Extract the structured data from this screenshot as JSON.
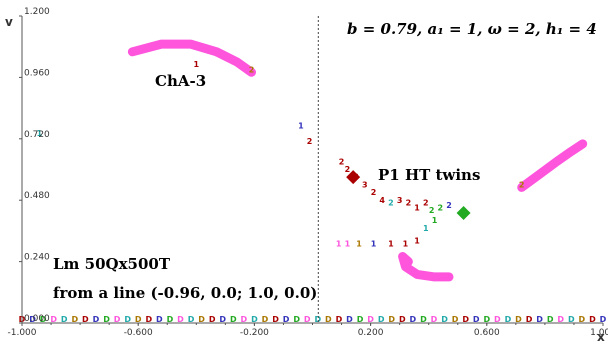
{
  "chart_data": {
    "type": "scatter",
    "xlabel": "x",
    "ylabel": "v",
    "xlim": [
      -1.0,
      1.0
    ],
    "ylim": [
      0.0,
      1.2
    ],
    "x_ticks": [
      "-1.000",
      "-0.600",
      "-0.200",
      "0.200",
      "0.600",
      "1.000"
    ],
    "y_ticks": [
      "0.000",
      "0.240",
      "0.480",
      "0.720",
      "0.960",
      "1.200"
    ],
    "annotations": {
      "params": "b = 0.79, a₁ = 1, ω = 2, h₁ = 4",
      "cha_label": "ChA-3",
      "p1_label": "P1 HT twins",
      "lm_label": "Lm 50Qx500T",
      "line_label": "from a line (-0.96, 0.0; 1.0, 0.0)"
    },
    "dashed_vline_x": 0.02,
    "colors": {
      "axis": "#555555",
      "tick": "#333333",
      "magenta": "#ff55dd",
      "dark_red": "#aa0000",
      "green": "#22aa22",
      "dotted_line": "#444444"
    },
    "curves": [
      {
        "name": "",
        "color": "#ff55dd",
        "points": [
          [
            -0.62,
            1.06
          ],
          [
            -0.52,
            1.09
          ],
          [
            -0.42,
            1.09
          ],
          [
            -0.33,
            1.06
          ],
          [
            -0.26,
            1.02
          ],
          [
            -0.21,
            0.98
          ]
        ]
      },
      {
        "name": "",
        "color": "#ff55dd",
        "points": [
          [
            0.72,
            0.53
          ],
          [
            0.78,
            0.58
          ],
          [
            0.84,
            0.63
          ],
          [
            0.89,
            0.67
          ],
          [
            0.93,
            0.7
          ]
        ]
      },
      {
        "name": "",
        "color": "#ff55dd",
        "points": [
          [
            0.33,
            0.24
          ],
          [
            0.31,
            0.26
          ],
          [
            0.32,
            0.22
          ],
          [
            0.36,
            0.19
          ],
          [
            0.42,
            0.18
          ],
          [
            0.47,
            0.18
          ]
        ]
      }
    ],
    "marks": [
      {
        "x": -0.94,
        "y": 0.73,
        "t": "1",
        "color": "#22aaaa"
      },
      {
        "x": -0.4,
        "y": 1.0,
        "t": "1",
        "color": "#aa0000"
      },
      {
        "x": -0.21,
        "y": 0.98,
        "t": "2",
        "color": "#aa7700"
      },
      {
        "x": -0.04,
        "y": 0.76,
        "t": "1",
        "color": "#3333bb"
      },
      {
        "x": -0.01,
        "y": 0.7,
        "t": "2",
        "color": "#aa0000"
      },
      {
        "x": 0.1,
        "y": 0.62,
        "t": "2",
        "color": "#aa0000"
      },
      {
        "x": 0.12,
        "y": 0.59,
        "t": "2",
        "color": "#aa0000"
      },
      {
        "x": 0.15,
        "y": 0.56,
        "t": "3",
        "color": "#aa0000"
      },
      {
        "x": 0.18,
        "y": 0.53,
        "t": "3",
        "color": "#aa0000"
      },
      {
        "x": 0.21,
        "y": 0.5,
        "t": "2",
        "color": "#aa0000"
      },
      {
        "x": 0.24,
        "y": 0.47,
        "t": "4",
        "color": "#aa0000"
      },
      {
        "x": 0.27,
        "y": 0.46,
        "t": "2",
        "color": "#22aaaa"
      },
      {
        "x": 0.3,
        "y": 0.47,
        "t": "3",
        "color": "#aa0000"
      },
      {
        "x": 0.33,
        "y": 0.46,
        "t": "2",
        "color": "#aa0000"
      },
      {
        "x": 0.36,
        "y": 0.44,
        "t": "1",
        "color": "#aa0000"
      },
      {
        "x": 0.39,
        "y": 0.46,
        "t": "2",
        "color": "#aa0000"
      },
      {
        "x": 0.41,
        "y": 0.43,
        "t": "2",
        "color": "#22aa22"
      },
      {
        "x": 0.44,
        "y": 0.44,
        "t": "2",
        "color": "#22aa22"
      },
      {
        "x": 0.47,
        "y": 0.45,
        "t": "2",
        "color": "#3333bb"
      },
      {
        "x": 0.42,
        "y": 0.39,
        "t": "1",
        "color": "#22aa22"
      },
      {
        "x": 0.39,
        "y": 0.36,
        "t": "1",
        "color": "#22aaaa"
      },
      {
        "x": 0.36,
        "y": 0.31,
        "t": "1",
        "color": "#aa0000"
      },
      {
        "x": 0.09,
        "y": 0.3,
        "t": "1",
        "color": "#ff55dd"
      },
      {
        "x": 0.12,
        "y": 0.3,
        "t": "1",
        "color": "#ff55dd"
      },
      {
        "x": 0.16,
        "y": 0.3,
        "t": "1",
        "color": "#aa7700"
      },
      {
        "x": 0.21,
        "y": 0.3,
        "t": "1",
        "color": "#3333bb"
      },
      {
        "x": 0.27,
        "y": 0.3,
        "t": "1",
        "color": "#aa0000"
      },
      {
        "x": 0.32,
        "y": 0.3,
        "t": "1",
        "color": "#aa0000"
      },
      {
        "x": 0.72,
        "y": 0.53,
        "t": "2",
        "color": "#aa7700"
      }
    ],
    "clusters": [
      {
        "x": 0.14,
        "y": 0.57,
        "color": "#aa0000"
      },
      {
        "x": 0.52,
        "y": 0.43,
        "color": "#22aa22"
      }
    ],
    "baseline_marks": {
      "y": 0.0,
      "x_start": -1.0,
      "x_end": 1.0,
      "count": 56,
      "t": "D",
      "palette": [
        "#aa0000",
        "#3333bb",
        "#22aa22",
        "#ff55dd",
        "#22aaaa",
        "#aa7700"
      ]
    }
  }
}
